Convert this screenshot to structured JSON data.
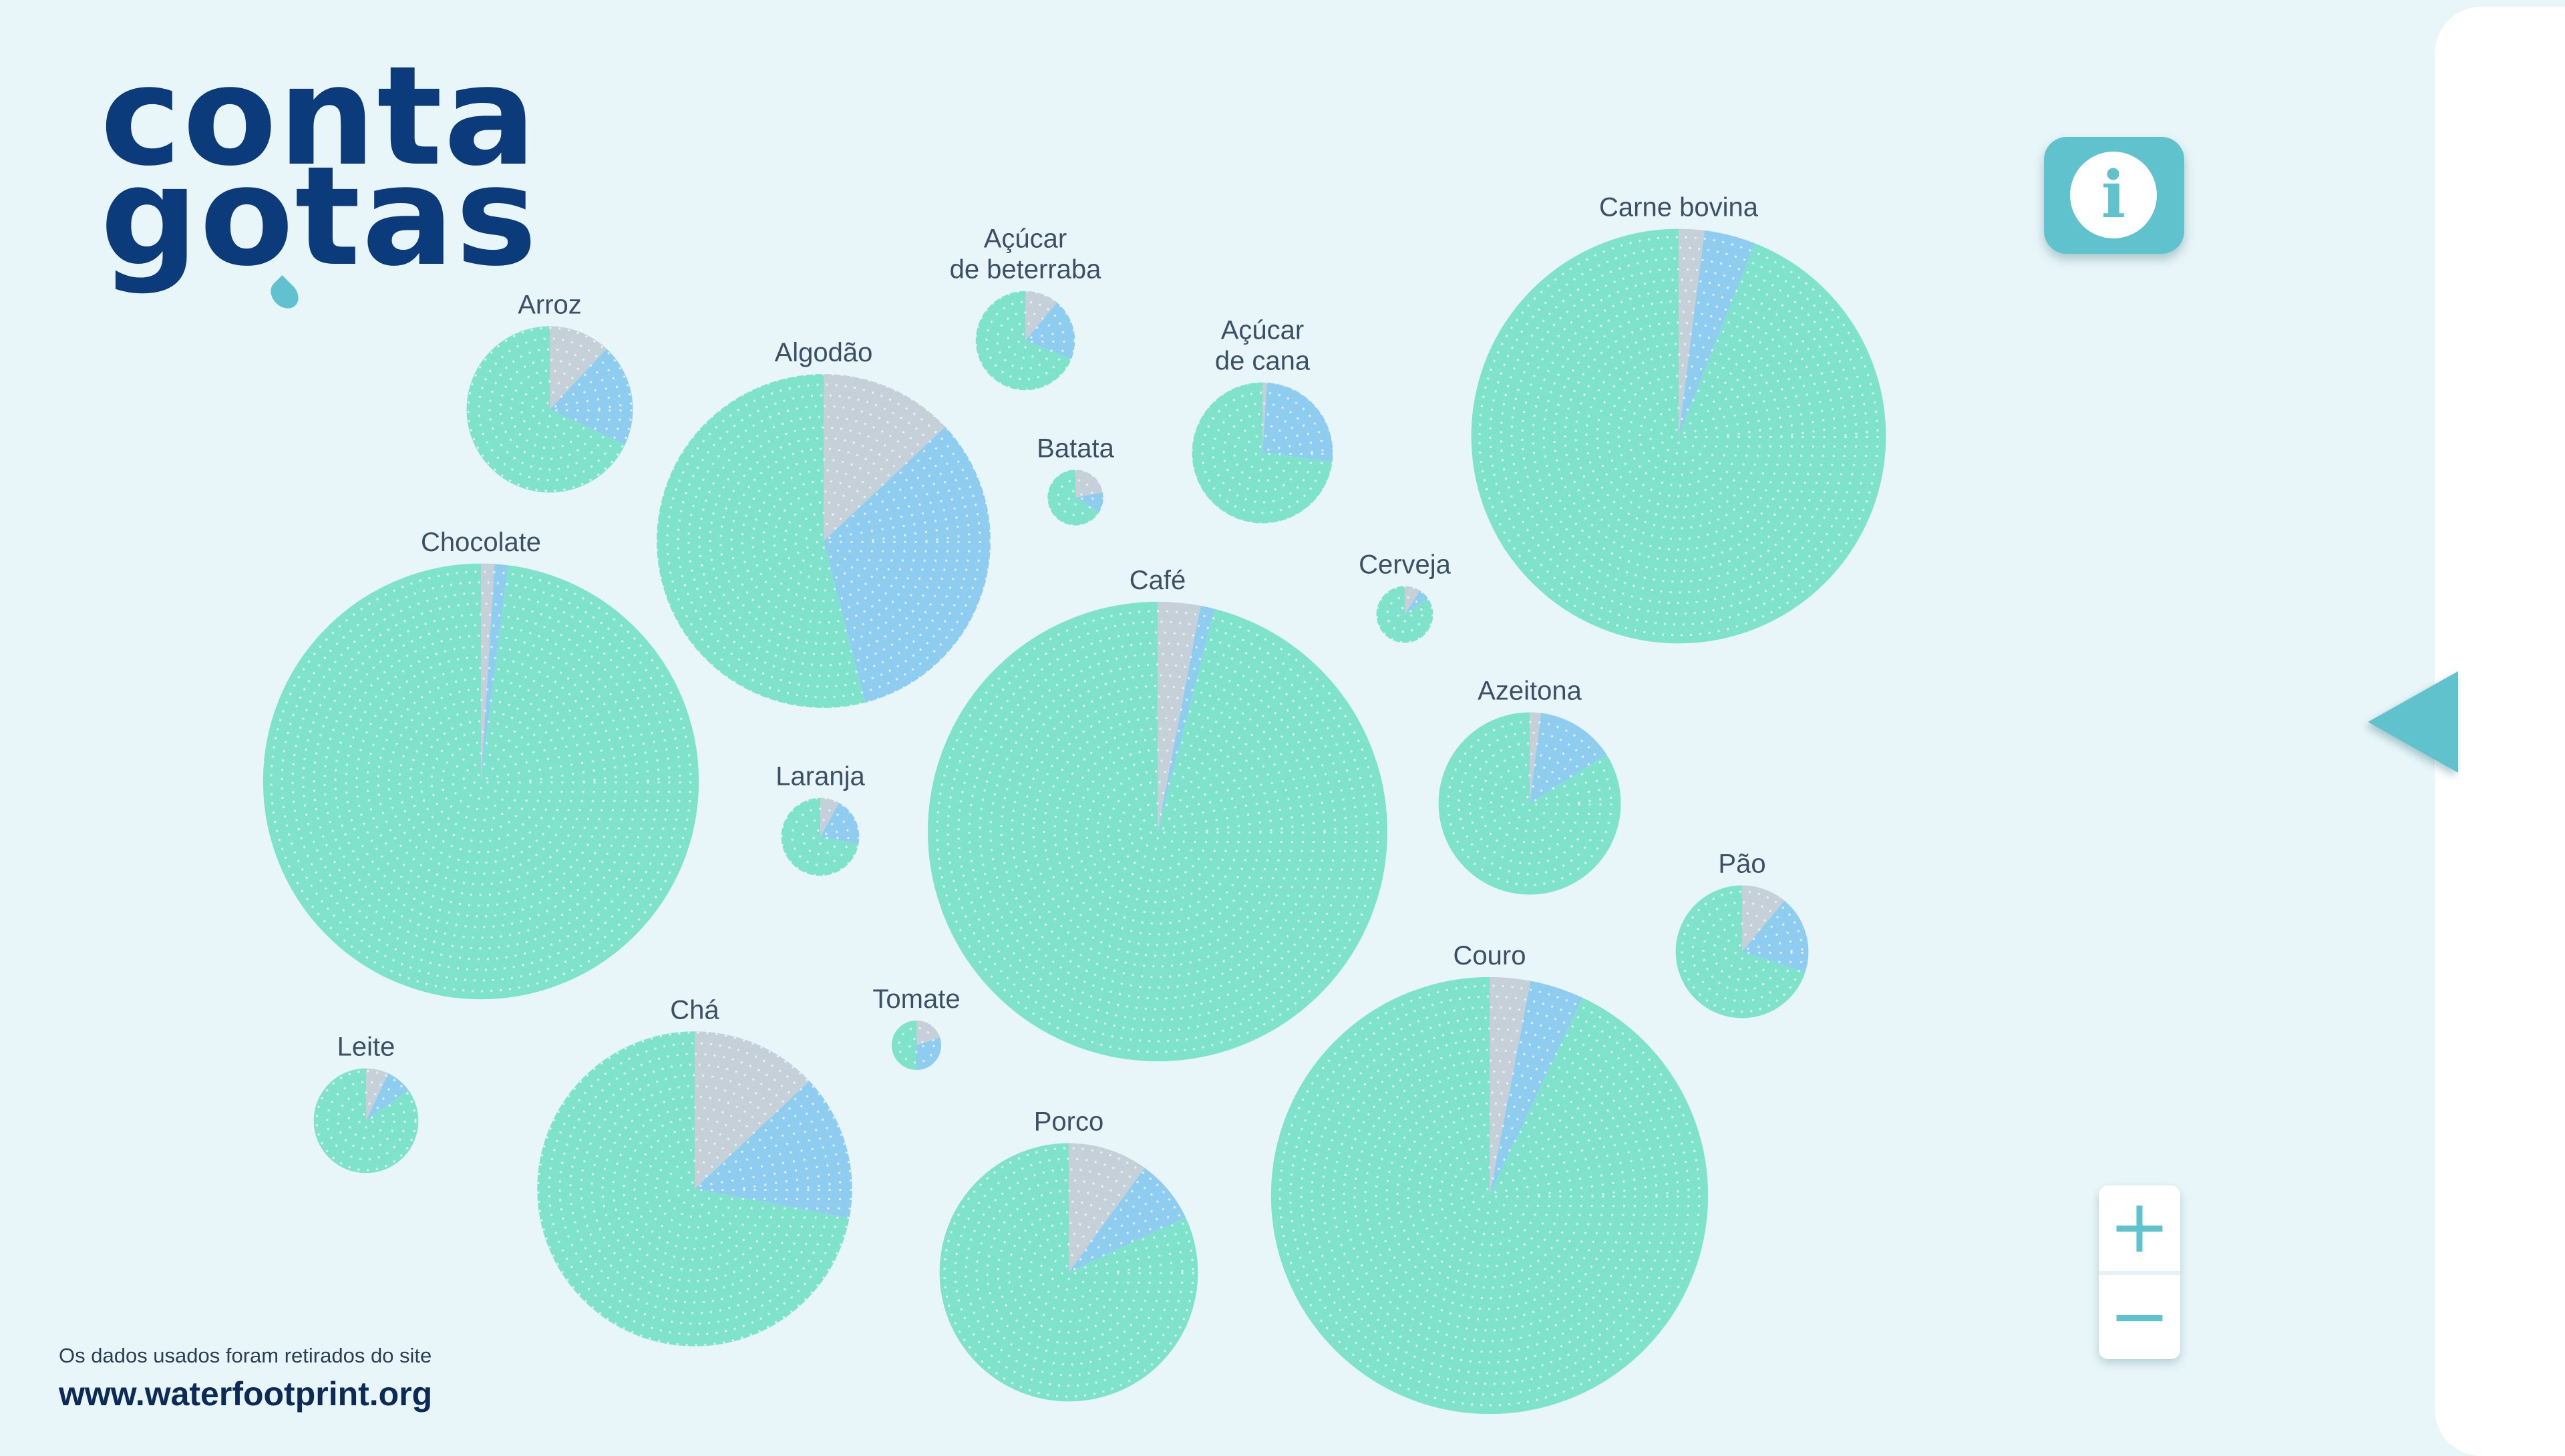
{
  "app": {
    "logo_line1": "conta",
    "logo_line2": "gotas",
    "info_icon": "info-icon",
    "source_note": "Os dados usados foram retirados do site",
    "source_url": "www.waterfootprint.org",
    "zoom_in_label": "+",
    "zoom_out_label": "−",
    "colors": {
      "background": "#e9f6f9",
      "green_water": "#7fe3cc",
      "blue_water": "#8fcdf0",
      "grey_water": "#c6d0d8",
      "accent": "#5fc2cd",
      "logo": "#0b3b7a"
    }
  },
  "chart_data": {
    "type": "pie",
    "series_colors": {
      "green": "#7fe3cc",
      "blue": "#8fcdf0",
      "grey": "#c6d0d8"
    },
    "items": [
      {
        "name": "Arroz",
        "total": 2500,
        "green": 0.68,
        "blue": 0.2,
        "grey": 0.12
      },
      {
        "name": "Algodão",
        "total": 10000,
        "green": 0.54,
        "blue": 0.33,
        "grey": 0.13
      },
      {
        "name": "Açúcar de beterraba",
        "total": 900,
        "green": 0.69,
        "blue": 0.2,
        "grey": 0.11
      },
      {
        "name": "Açúcar de cana",
        "total": 1800,
        "green": 0.73,
        "blue": 0.26,
        "grey": 0.01
      },
      {
        "name": "Batata",
        "total": 290,
        "green": 0.66,
        "blue": 0.12,
        "grey": 0.22
      },
      {
        "name": "Carne bovina",
        "total": 15400,
        "green": 0.94,
        "blue": 0.04,
        "grey": 0.02
      },
      {
        "name": "Chocolate",
        "total": 17000,
        "green": 0.98,
        "blue": 0.01,
        "grey": 0.01
      },
      {
        "name": "Cerveja",
        "total": 300,
        "green": 0.85,
        "blue": 0.06,
        "grey": 0.09
      },
      {
        "name": "Café",
        "total": 18900,
        "green": 0.96,
        "blue": 0.01,
        "grey": 0.03
      },
      {
        "name": "Laranja",
        "total": 560,
        "green": 0.72,
        "blue": 0.2,
        "grey": 0.08
      },
      {
        "name": "Azeitona",
        "total": 3000,
        "green": 0.84,
        "blue": 0.14,
        "grey": 0.02
      },
      {
        "name": "Pão",
        "total": 1600,
        "green": 0.7,
        "blue": 0.19,
        "grey": 0.11
      },
      {
        "name": "Chá",
        "total": 8900,
        "green": 0.72,
        "blue": 0.15,
        "grey": 0.13
      },
      {
        "name": "Tomate",
        "total": 214,
        "green": 0.5,
        "blue": 0.3,
        "grey": 0.2
      },
      {
        "name": "Leite",
        "total": 1000,
        "green": 0.85,
        "blue": 0.08,
        "grey": 0.07
      },
      {
        "name": "Porco",
        "total": 6000,
        "green": 0.82,
        "blue": 0.08,
        "grey": 0.1
      },
      {
        "name": "Couro",
        "total": 17100,
        "green": 0.93,
        "blue": 0.04,
        "grey": 0.03
      }
    ]
  }
}
